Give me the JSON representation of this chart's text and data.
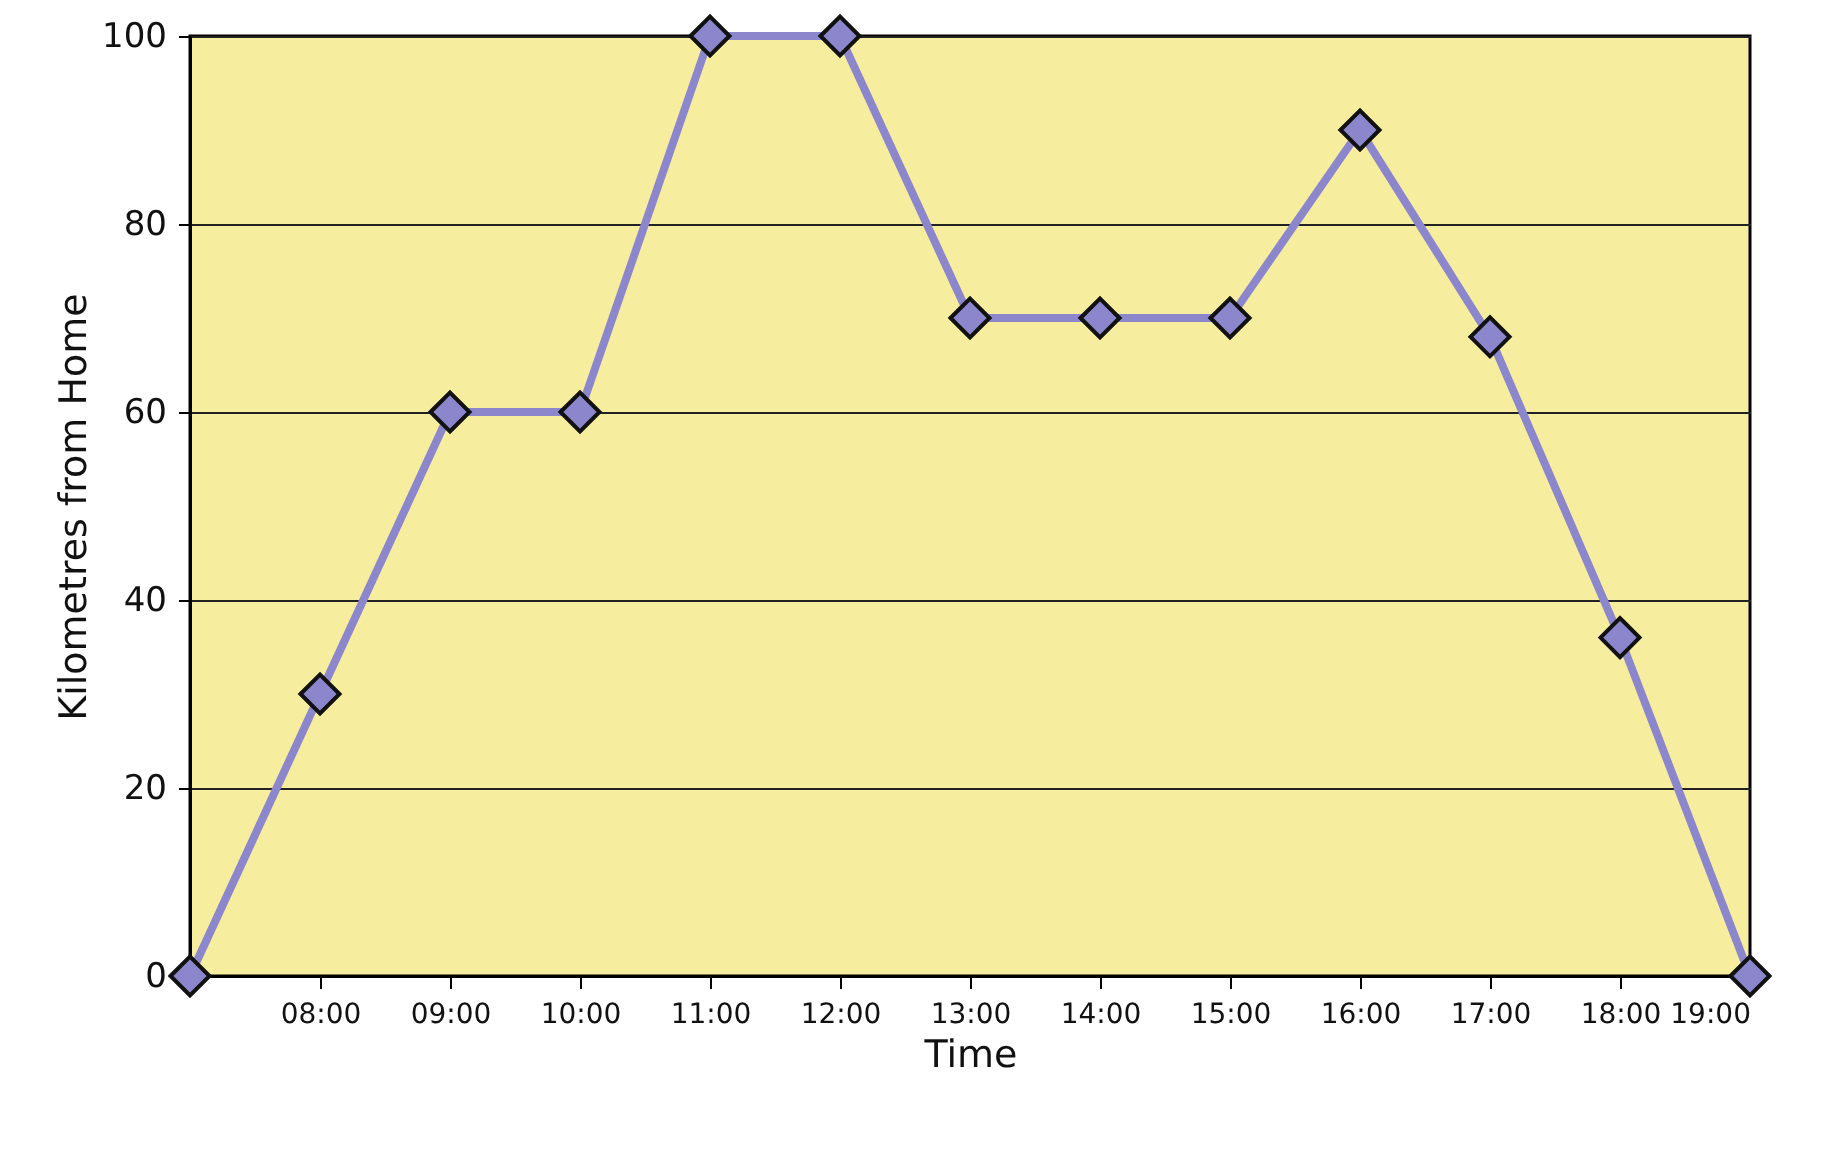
{
  "chart_data": {
    "type": "line",
    "xlabel": "Time",
    "ylabel": "Kilometres from Home",
    "x": [
      7,
      8,
      9,
      10,
      11,
      12,
      13,
      14,
      15,
      16,
      17,
      18,
      19
    ],
    "series": [
      {
        "color": "#8c87cc",
        "values": [
          0,
          30,
          60,
          60,
          100,
          100,
          70,
          70,
          70,
          90,
          68,
          36,
          0
        ]
      }
    ],
    "xlim": [
      7,
      19
    ],
    "xticks": [
      {
        "value": 8,
        "label": "08:00"
      },
      {
        "value": 9,
        "label": "09:00"
      },
      {
        "value": 10,
        "label": "10:00"
      },
      {
        "value": 11,
        "label": "11:00"
      },
      {
        "value": 12,
        "label": "12:00"
      },
      {
        "value": 13,
        "label": "13:00"
      },
      {
        "value": 14,
        "label": "14:00"
      },
      {
        "value": 15,
        "label": "15:00"
      },
      {
        "value": 16,
        "label": "16:00"
      },
      {
        "value": 17,
        "label": "17:00"
      },
      {
        "value": 18,
        "label": "18:00"
      },
      {
        "value": 19,
        "label": "19:00"
      }
    ],
    "ylim": [
      0,
      100
    ],
    "yticks": [
      0,
      20,
      40,
      60,
      80,
      100
    ],
    "grid": "y",
    "marker": "diamond",
    "line_style": "solid"
  }
}
